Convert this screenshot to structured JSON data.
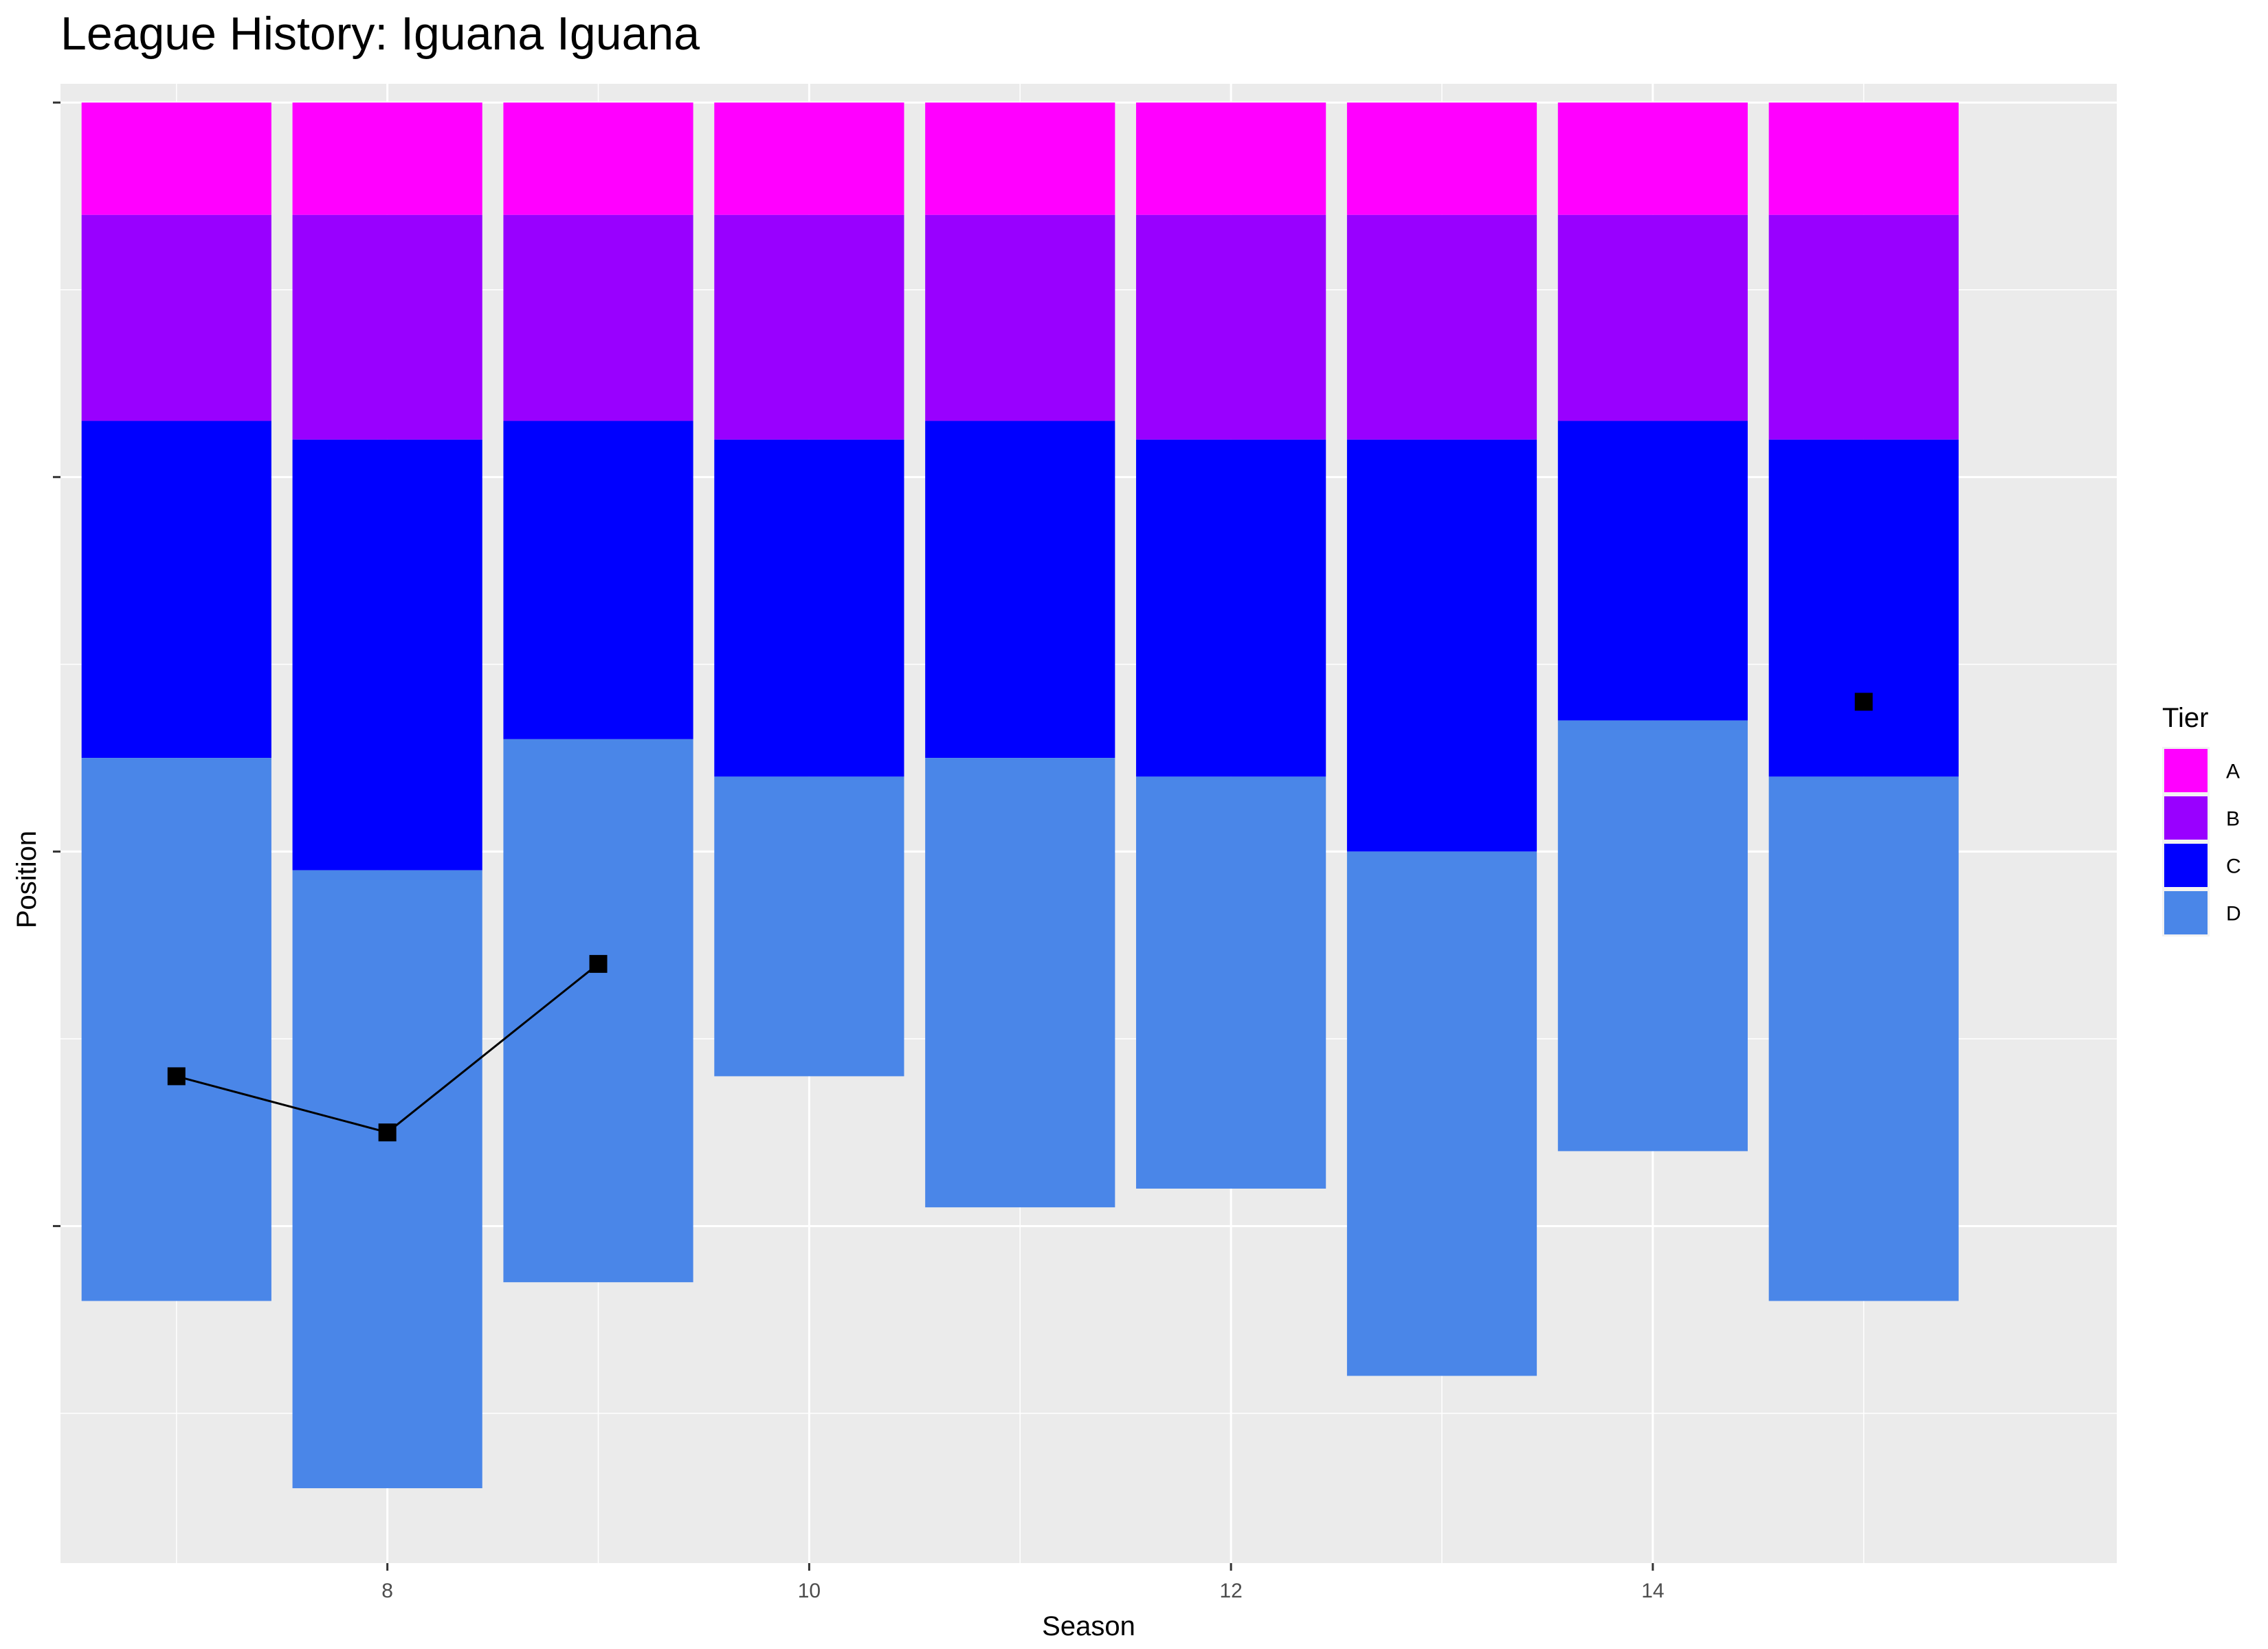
{
  "chart_data": {
    "type": "bar",
    "title": "League History: Iguana Iguana",
    "xlabel": "Season",
    "ylabel": "Position",
    "x_ticks": [
      8,
      10,
      12,
      14
    ],
    "xlim": [
      6.45,
      16.2
    ],
    "y_reversed": true,
    "y_tick_values": [
      1,
      21,
      41,
      61
    ],
    "ylim": [
      0,
      79
    ],
    "y_tick_labels_shown": false,
    "grid": true,
    "legend": {
      "title": "Tier",
      "position": "right",
      "items": [
        {
          "label": "A",
          "color": "#FF00FF"
        },
        {
          "label": "B",
          "color": "#9900FF"
        },
        {
          "label": "C",
          "color": "#0000FF"
        },
        {
          "label": "D",
          "color": "#4A86E8"
        }
      ]
    },
    "bars": [
      {
        "season": 7,
        "tiers": {
          "A": [
            1,
            7
          ],
          "B": [
            7,
            18
          ],
          "C": [
            18,
            36
          ],
          "D": [
            36,
            65
          ]
        }
      },
      {
        "season": 8,
        "tiers": {
          "A": [
            1,
            7
          ],
          "B": [
            7,
            19
          ],
          "C": [
            19,
            42
          ],
          "D": [
            42,
            75
          ]
        }
      },
      {
        "season": 9,
        "tiers": {
          "A": [
            1,
            7
          ],
          "B": [
            7,
            18
          ],
          "C": [
            18,
            35
          ],
          "D": [
            35,
            64
          ]
        }
      },
      {
        "season": 10,
        "tiers": {
          "A": [
            1,
            7
          ],
          "B": [
            7,
            19
          ],
          "C": [
            19,
            37
          ],
          "D": [
            37,
            53
          ]
        }
      },
      {
        "season": 11,
        "tiers": {
          "A": [
            1,
            7
          ],
          "B": [
            7,
            18
          ],
          "C": [
            18,
            36
          ],
          "D": [
            36,
            60
          ]
        }
      },
      {
        "season": 12,
        "tiers": {
          "A": [
            1,
            7
          ],
          "B": [
            7,
            19
          ],
          "C": [
            19,
            37
          ],
          "D": [
            37,
            59
          ]
        }
      },
      {
        "season": 13,
        "tiers": {
          "A": [
            1,
            7
          ],
          "B": [
            7,
            19
          ],
          "C": [
            19,
            41
          ],
          "D": [
            41,
            69
          ]
        }
      },
      {
        "season": 14,
        "tiers": {
          "A": [
            1,
            7
          ],
          "B": [
            7,
            18
          ],
          "C": [
            18,
            34
          ],
          "D": [
            34,
            57
          ]
        }
      },
      {
        "season": 15,
        "tiers": {
          "A": [
            1,
            7
          ],
          "B": [
            7,
            19
          ],
          "C": [
            19,
            37
          ],
          "D": [
            37,
            65
          ]
        }
      }
    ],
    "position_series": [
      {
        "segment": 1,
        "points": [
          {
            "season": 7,
            "position": 53
          },
          {
            "season": 8,
            "position": 56
          },
          {
            "season": 9,
            "position": 47
          }
        ]
      },
      {
        "segment": 2,
        "points": [
          {
            "season": 15,
            "position": 33
          }
        ]
      }
    ]
  }
}
